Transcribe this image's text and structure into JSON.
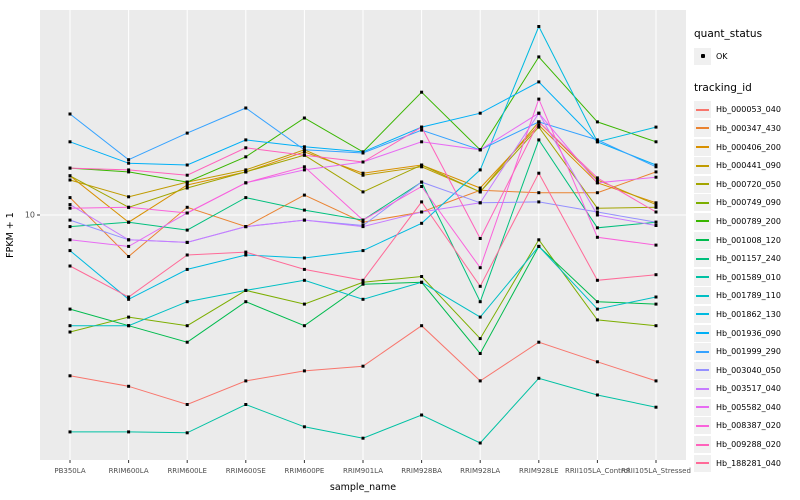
{
  "figure": {
    "background": "#FFFFFF",
    "panel_background": "#EBEBEB",
    "gridline_color": "#FFFFFF",
    "marker_color": "#000000",
    "axis_text_color": "#4D4D4D"
  },
  "y_axis": {
    "title": "FPKM + 1",
    "tick_labels": [
      "10"
    ]
  },
  "x_axis": {
    "title": "sample_name"
  },
  "legend": {
    "position": "right",
    "quant_status": {
      "title": "quant_status",
      "items": [
        {
          "label": "OK",
          "marker": "black-point"
        }
      ]
    },
    "tracking_id": {
      "title": "tracking_id"
    }
  },
  "chart_data": {
    "type": "line",
    "title": "",
    "xlabel": "sample_name",
    "ylabel": "FPKM + 1",
    "yscale": "log10",
    "ytick_values": [
      10
    ],
    "ylim_approx": [
      1,
      80
    ],
    "grid": "major-on",
    "legend_position": "right",
    "quant_status_all": "OK",
    "categories": [
      "PB350LA",
      "RRIM600LA",
      "RRIM600LE",
      "RRIM600SE",
      "RRIM600PE",
      "RRIM901LA",
      "RRIM928BA",
      "RRIM928LA",
      "RRIM928LE",
      "RRII105LA_Control",
      "RRII105LA_Stressed"
    ],
    "series": [
      {
        "name": "Hb_000053_040",
        "color": "#F8766D",
        "quant_status": "OK",
        "values": [
          2.0,
          1.8,
          1.5,
          1.9,
          2.1,
          2.2,
          3.3,
          1.9,
          2.8,
          2.3,
          1.9
        ]
      },
      {
        "name": "Hb_000347_430",
        "color": "#EA8331",
        "quant_status": "OK",
        "values": [
          11.9,
          6.6,
          10.8,
          8.9,
          12.2,
          9.3,
          10.3,
          12.8,
          12.5,
          12.5,
          15.4
        ]
      },
      {
        "name": "Hb_000406_200",
        "color": "#D89000",
        "quant_status": "OK",
        "values": [
          14.8,
          9.3,
          13.5,
          15.4,
          18.8,
          15.2,
          16.5,
          13.1,
          24.6,
          13.8,
          11.3
        ]
      },
      {
        "name": "Hb_000441_090",
        "color": "#C09B00",
        "quant_status": "OK",
        "values": [
          14.2,
          12.0,
          13.9,
          15.7,
          19.2,
          14.9,
          16.2,
          12.6,
          25.4,
          14.2,
          11.1
        ]
      },
      {
        "name": "Hb_000720_050",
        "color": "#A3A500",
        "quant_status": "OK",
        "values": [
          14.8,
          10.8,
          13.1,
          15.4,
          18.2,
          12.6,
          16.5,
          12.6,
          24.1,
          10.7,
          10.8
        ]
      },
      {
        "name": "Hb_000749_090",
        "color": "#7CAE00",
        "quant_status": "OK",
        "values": [
          3.1,
          3.6,
          3.3,
          4.7,
          4.1,
          5.1,
          5.4,
          2.9,
          7.8,
          3.5,
          3.3
        ]
      },
      {
        "name": "Hb_000789_200",
        "color": "#39B600",
        "quant_status": "OK",
        "values": [
          16.0,
          15.4,
          13.9,
          17.9,
          26.4,
          18.8,
          34.2,
          19.2,
          48.7,
          25.4,
          20.8
        ]
      },
      {
        "name": "Hb_001008_120",
        "color": "#00BB4E",
        "quant_status": "OK",
        "values": [
          3.9,
          3.3,
          2.8,
          4.2,
          3.3,
          5.0,
          5.1,
          2.5,
          7.3,
          4.2,
          4.1
        ]
      },
      {
        "name": "Hb_001157_240",
        "color": "#00BF7D",
        "quant_status": "OK",
        "values": [
          8.9,
          9.3,
          8.6,
          11.9,
          10.5,
          9.5,
          13.9,
          4.2,
          21.2,
          8.8,
          9.3
        ]
      },
      {
        "name": "Hb_001589_010",
        "color": "#00C1A3",
        "quant_status": "OK",
        "values": [
          1.14,
          1.14,
          1.13,
          1.5,
          1.2,
          1.07,
          1.35,
          1.02,
          1.95,
          1.65,
          1.46
        ]
      },
      {
        "name": "Hb_001789_110",
        "color": "#00BFC4",
        "quant_status": "OK",
        "values": [
          3.3,
          3.3,
          4.2,
          4.7,
          5.2,
          4.3,
          5.1,
          3.6,
          7.3,
          3.9,
          4.4
        ]
      },
      {
        "name": "Hb_001862_130",
        "color": "#00BAE0",
        "quant_status": "OK",
        "values": [
          7.0,
          4.3,
          5.8,
          6.7,
          6.5,
          7.0,
          9.2,
          15.7,
          66.0,
          20.8,
          24.1
        ]
      },
      {
        "name": "Hb_001936_090",
        "color": "#00B0F6",
        "quant_status": "OK",
        "values": [
          20.8,
          16.8,
          16.5,
          21.2,
          19.8,
          18.8,
          24.1,
          27.7,
          37.9,
          20.8,
          16.5
        ]
      },
      {
        "name": "Hb_001999_290",
        "color": "#35A2FF",
        "quant_status": "OK",
        "values": [
          27.5,
          17.4,
          22.7,
          29.2,
          19.2,
          18.6,
          23.4,
          19.2,
          25.4,
          21.2,
          16.2
        ]
      },
      {
        "name": "Hb_003040_050",
        "color": "#9590FF",
        "quant_status": "OK",
        "values": [
          9.5,
          7.8,
          7.6,
          8.9,
          9.5,
          9.0,
          13.9,
          11.3,
          11.4,
          10.3,
          9.3
        ]
      },
      {
        "name": "Hb_003517_040",
        "color": "#C77CFF",
        "quant_status": "OK",
        "values": [
          11.1,
          7.8,
          7.6,
          8.9,
          9.5,
          8.9,
          10.3,
          11.3,
          27.7,
          10.0,
          9.0
        ]
      },
      {
        "name": "Hb_005582_040",
        "color": "#E76BF3",
        "quant_status": "OK",
        "values": [
          7.8,
          7.3,
          10.2,
          13.8,
          15.7,
          17.0,
          20.8,
          19.2,
          27.7,
          13.8,
          14.6
        ]
      },
      {
        "name": "Hb_008387_020",
        "color": "#FA62DB",
        "quant_status": "OK",
        "values": [
          10.7,
          10.8,
          10.2,
          13.8,
          16.2,
          9.5,
          13.3,
          5.9,
          31.9,
          8.0,
          7.4
        ]
      },
      {
        "name": "Hb_009288_020",
        "color": "#FF62BC",
        "quant_status": "OK",
        "values": [
          16.0,
          15.7,
          14.9,
          19.6,
          18.2,
          17.0,
          24.1,
          7.9,
          25.4,
          14.5,
          10.3
        ]
      },
      {
        "name": "Hb_188281_040",
        "color": "#FF6A98",
        "quant_status": "OK",
        "values": [
          6.0,
          4.4,
          6.7,
          6.9,
          5.8,
          5.2,
          11.4,
          4.9,
          15.2,
          5.2,
          5.5
        ]
      }
    ]
  }
}
